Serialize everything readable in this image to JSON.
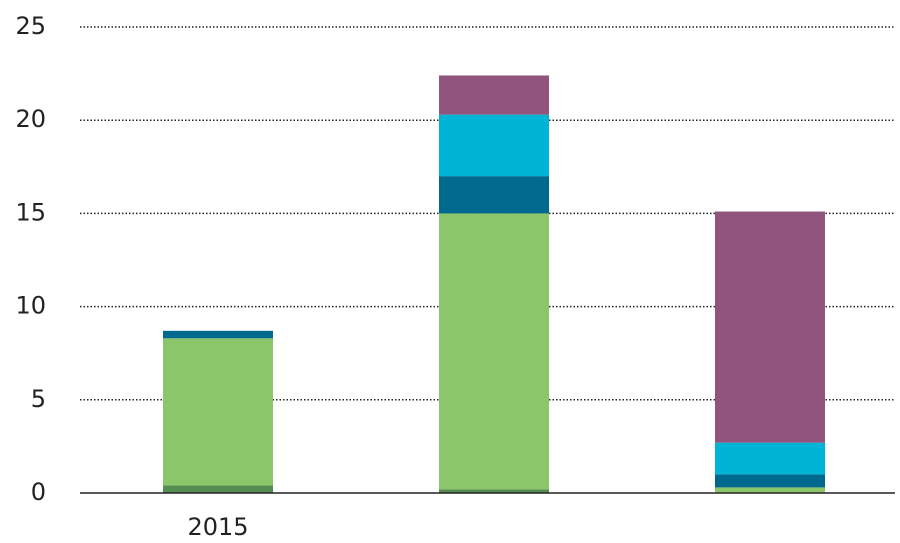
{
  "chart_data": {
    "type": "stacked_bar",
    "categories": [
      "2015",
      null,
      null
    ],
    "series": [
      {
        "color": "#548c52",
        "values": [
          0.4,
          0.2,
          0
        ]
      },
      {
        "color": "#8cc66a",
        "values": [
          7.9,
          14.8,
          0.3
        ]
      },
      {
        "color": "#006a8e",
        "values": [
          0.4,
          2.0,
          0.7
        ]
      },
      {
        "color": "#00b4d5",
        "values": [
          0,
          3.3,
          1.7
        ]
      },
      {
        "color": "#91547d",
        "values": [
          0,
          2.1,
          12.4
        ]
      }
    ],
    "ylim": [
      0,
      25
    ],
    "yticks": [
      0,
      5,
      10,
      15,
      20,
      25
    ],
    "grid": true
  }
}
